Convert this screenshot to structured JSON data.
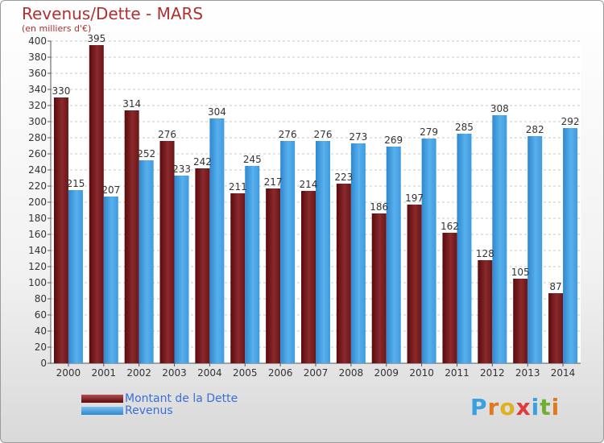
{
  "title": "Revenus/Dette - MARS",
  "subtitle": "(en milliers d'€)",
  "colors": {
    "debt": "#7a1f22",
    "revenue": "#3d9be0"
  },
  "legend": {
    "debt_label": "Montant de la Dette",
    "revenue_label": "Revenus"
  },
  "logo": {
    "text": "Proxiti",
    "letters": [
      "P",
      "r",
      "o",
      "x",
      "i",
      "t",
      "i"
    ],
    "colors": [
      "#3aa0e0",
      "#e07820",
      "#e0b020",
      "#e03a3a",
      "#3aa0e0",
      "#70b030",
      "#e07820"
    ]
  },
  "chart_data": {
    "type": "bar",
    "title": "Revenus/Dette - MARS",
    "subtitle": "(en milliers d'€)",
    "categories": [
      "2000",
      "2001",
      "2002",
      "2003",
      "2004",
      "2005",
      "2006",
      "2007",
      "2008",
      "2009",
      "2010",
      "2011",
      "2012",
      "2013",
      "2014"
    ],
    "series": [
      {
        "name": "Montant de la Dette",
        "values": [
          330,
          395,
          314,
          276,
          242,
          211,
          217,
          214,
          223,
          186,
          197,
          162,
          128,
          105,
          87
        ]
      },
      {
        "name": "Revenus",
        "values": [
          215,
          207,
          252,
          233,
          304,
          245,
          276,
          276,
          273,
          269,
          279,
          285,
          308,
          282,
          292
        ]
      }
    ],
    "ylim": [
      0,
      400
    ],
    "ytick_step": 20,
    "grid": true,
    "legend_position": "bottom-left"
  }
}
